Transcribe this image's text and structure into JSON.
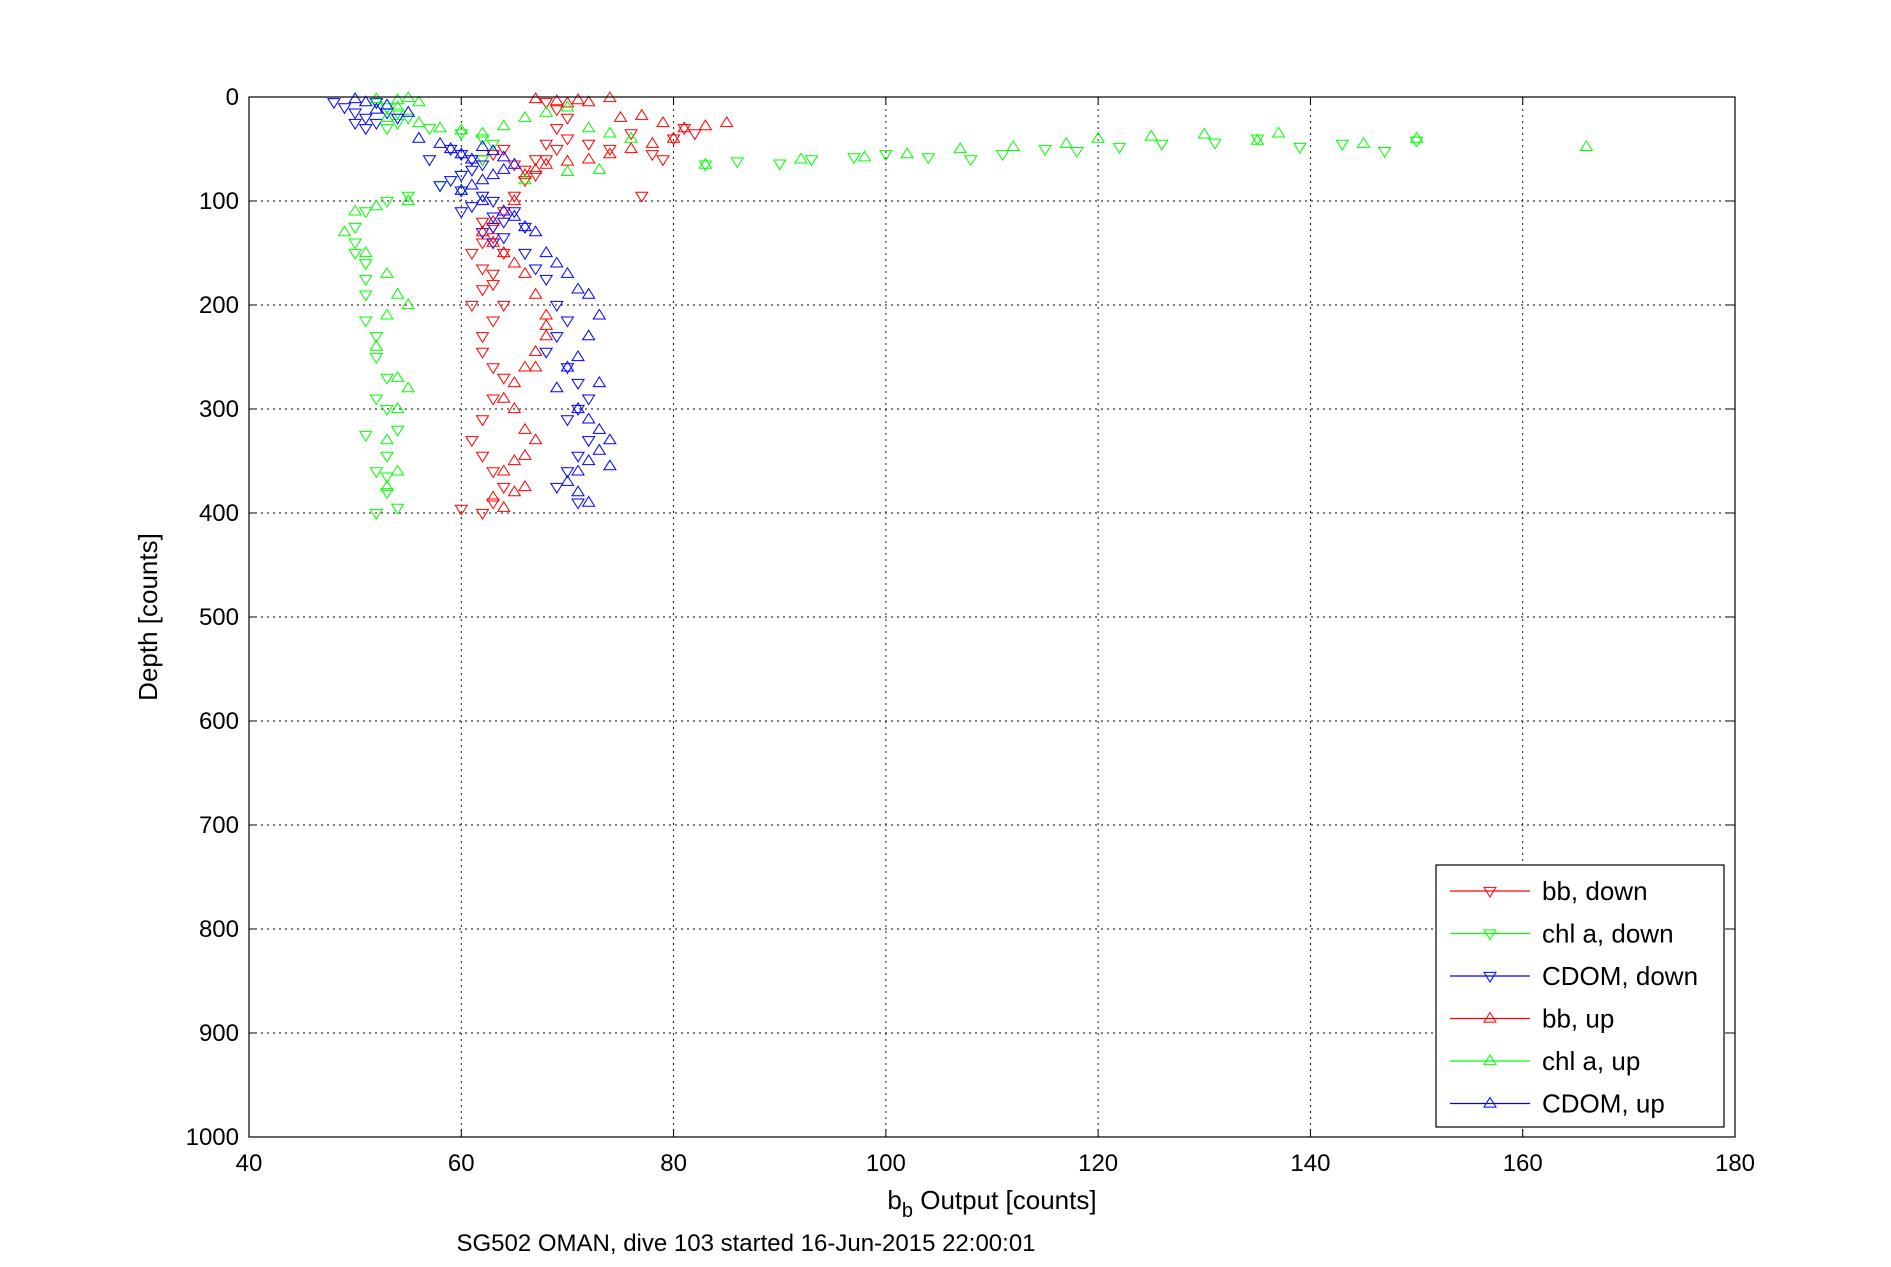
{
  "chart_data": {
    "type": "scatter",
    "title": "SG502 OMAN, dive 103 started 16-Jun-2015 22:00:01",
    "xlabel_main": "b",
    "xlabel_sub": "b",
    "xlabel_rest": " Output [counts]",
    "ylabel": "Depth [counts]",
    "xlim": [
      40,
      180
    ],
    "ylim": [
      0,
      1000
    ],
    "y_reversed": true,
    "grid": true,
    "legend_position": "bottom-right",
    "xticks": [
      "40",
      "60",
      "80",
      "100",
      "120",
      "140",
      "160",
      "180"
    ],
    "yticks": [
      "0",
      "100",
      "200",
      "300",
      "400",
      "500",
      "600",
      "700",
      "800",
      "900",
      "1000"
    ],
    "series": [
      {
        "name": "bb, down",
        "color": "#ff0000",
        "marker": "triangle-down",
        "x": [
          68,
          69,
          70,
          69,
          68,
          67,
          66,
          65,
          64,
          63,
          62,
          61,
          62,
          63,
          64,
          63,
          62,
          62,
          63,
          64,
          63,
          62,
          61,
          62,
          63,
          64,
          63,
          62,
          62,
          63,
          64,
          63,
          62,
          61,
          60,
          62,
          63,
          64,
          65,
          66,
          67,
          68,
          69,
          70,
          72,
          74,
          76,
          77,
          78,
          80,
          82,
          81,
          79
        ],
        "y": [
          5,
          12,
          20,
          30,
          45,
          60,
          80,
          95,
          110,
          125,
          140,
          150,
          165,
          180,
          200,
          215,
          230,
          245,
          260,
          270,
          290,
          310,
          330,
          345,
          360,
          375,
          390,
          400,
          120,
          135,
          150,
          170,
          185,
          200,
          396,
          60,
          55,
          50,
          65,
          70,
          75,
          60,
          50,
          40,
          45,
          50,
          35,
          95,
          55,
          40,
          35,
          30,
          60
        ]
      },
      {
        "name": "chl a, down",
        "color": "#00ff00",
        "marker": "triangle-down",
        "x": [
          52,
          53,
          54,
          55,
          54,
          53,
          57,
          60,
          62,
          63,
          62,
          60,
          58,
          55,
          53,
          51,
          50,
          50,
          50,
          51,
          51,
          51,
          51,
          52,
          52,
          53,
          52,
          51,
          53,
          54,
          53,
          52,
          53,
          54,
          53,
          52,
          83,
          86,
          90,
          93,
          97,
          100,
          104,
          108,
          111,
          115,
          118,
          122,
          126,
          131,
          135,
          139,
          143,
          147,
          150
        ],
        "y": [
          5,
          10,
          15,
          20,
          25,
          30,
          30,
          35,
          40,
          45,
          60,
          75,
          85,
          95,
          100,
          110,
          125,
          140,
          150,
          160,
          175,
          190,
          215,
          230,
          250,
          270,
          290,
          325,
          300,
          320,
          345,
          360,
          380,
          395,
          365,
          400,
          65,
          62,
          64,
          60,
          58,
          55,
          58,
          60,
          55,
          50,
          52,
          48,
          45,
          44,
          40,
          48,
          45,
          52,
          42
        ]
      },
      {
        "name": "CDOM, down",
        "color": "#0000ff",
        "marker": "triangle-down",
        "x": [
          48,
          49,
          50,
          51,
          50,
          52,
          53,
          54,
          52,
          51,
          59,
          60,
          61,
          62,
          61,
          60,
          59,
          58,
          57,
          60,
          62,
          63,
          61,
          60,
          63,
          64,
          63,
          62,
          65,
          66,
          64,
          63,
          66,
          67,
          68,
          69,
          70,
          69,
          68,
          70,
          71,
          72,
          71,
          70,
          72,
          71,
          70,
          69,
          71
        ],
        "y": [
          5,
          10,
          15,
          20,
          25,
          5,
          15,
          20,
          25,
          30,
          50,
          55,
          60,
          65,
          70,
          75,
          80,
          85,
          60,
          90,
          95,
          100,
          105,
          110,
          115,
          120,
          125,
          130,
          110,
          125,
          135,
          140,
          150,
          165,
          175,
          200,
          215,
          230,
          245,
          260,
          275,
          290,
          300,
          310,
          330,
          345,
          360,
          375,
          390
        ]
      },
      {
        "name": "bb, up",
        "color": "#ff0000",
        "marker": "triangle-up",
        "x": [
          67,
          69,
          70,
          71,
          72,
          74,
          75,
          77,
          79,
          81,
          83,
          85,
          80,
          78,
          76,
          74,
          72,
          70,
          68,
          67,
          66,
          65,
          64,
          63,
          62,
          63,
          64,
          65,
          66,
          67,
          68,
          68,
          67,
          66,
          65,
          64,
          65,
          66,
          67,
          66,
          65,
          64,
          63,
          64,
          65,
          66,
          67,
          68
        ],
        "y": [
          2,
          4,
          6,
          3,
          5,
          1,
          20,
          18,
          25,
          30,
          28,
          25,
          40,
          45,
          50,
          55,
          60,
          62,
          65,
          70,
          75,
          100,
          110,
          120,
          130,
          140,
          150,
          160,
          170,
          190,
          210,
          230,
          245,
          260,
          275,
          290,
          300,
          320,
          330,
          345,
          350,
          360,
          385,
          395,
          380,
          375,
          260,
          220
        ]
      },
      {
        "name": "chl a, up",
        "color": "#00ff00",
        "marker": "triangle-up",
        "x": [
          52,
          54,
          55,
          56,
          54,
          53,
          56,
          58,
          60,
          62,
          64,
          66,
          68,
          70,
          72,
          74,
          76,
          73,
          70,
          66,
          60,
          55,
          52,
          50,
          49,
          51,
          53,
          54,
          55,
          53,
          52,
          54,
          55,
          54,
          53,
          54,
          53,
          83,
          92,
          98,
          102,
          107,
          112,
          117,
          120,
          125,
          130,
          135,
          137,
          145,
          150,
          166
        ],
        "y": [
          2,
          3,
          1,
          5,
          10,
          20,
          25,
          30,
          32,
          35,
          28,
          20,
          15,
          10,
          30,
          35,
          40,
          70,
          72,
          80,
          90,
          100,
          105,
          110,
          130,
          150,
          170,
          190,
          200,
          210,
          240,
          270,
          280,
          300,
          330,
          360,
          375,
          65,
          60,
          58,
          55,
          50,
          48,
          45,
          40,
          38,
          36,
          42,
          35,
          45,
          40,
          48
        ]
      },
      {
        "name": "CDOM, up",
        "color": "#0000ff",
        "marker": "triangle-up",
        "x": [
          50,
          51,
          53,
          52,
          55,
          56,
          58,
          59,
          60,
          61,
          62,
          63,
          64,
          65,
          64,
          63,
          62,
          61,
          60,
          62,
          64,
          65,
          66,
          67,
          68,
          69,
          70,
          71,
          72,
          73,
          72,
          71,
          70,
          69,
          71,
          72,
          73,
          74,
          73,
          72,
          71,
          70,
          71,
          72,
          73,
          74
        ],
        "y": [
          2,
          5,
          8,
          12,
          15,
          40,
          45,
          50,
          55,
          60,
          48,
          52,
          58,
          65,
          70,
          75,
          80,
          85,
          90,
          100,
          110,
          115,
          125,
          130,
          150,
          160,
          170,
          185,
          190,
          210,
          230,
          250,
          260,
          280,
          300,
          310,
          320,
          330,
          340,
          350,
          360,
          370,
          380,
          390,
          275,
          355
        ]
      }
    ]
  }
}
